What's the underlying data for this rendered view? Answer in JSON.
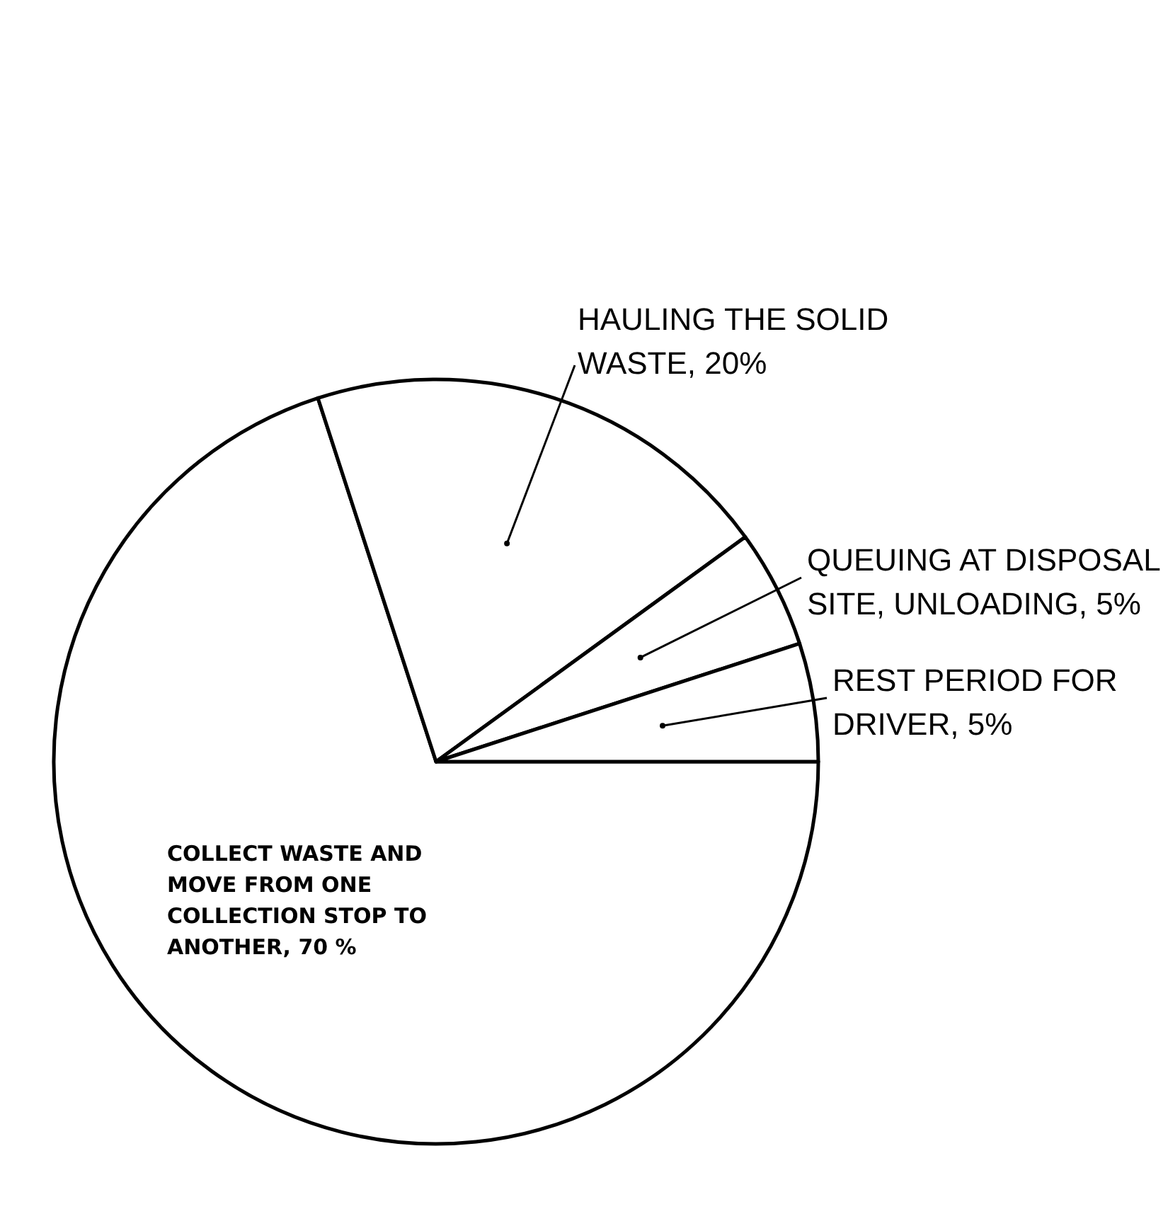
{
  "chart_data": {
    "type": "pie",
    "categories": [
      "COLLECT WASTE AND MOVE FROM ONE COLLECTION STOP TO ANOTHER",
      "HAULING THE SOLID WASTE",
      "QUEUING AT DISPOSAL SITE, UNLOADING",
      "REST PERIOD FOR DRIVER"
    ],
    "values": [
      70,
      20,
      5,
      5
    ],
    "value_labels": [
      "70 %",
      "20%",
      "5%",
      "5%"
    ],
    "colors": [
      "#ffffff",
      "#ffffff",
      "#ffffff",
      "#ffffff"
    ]
  }
}
